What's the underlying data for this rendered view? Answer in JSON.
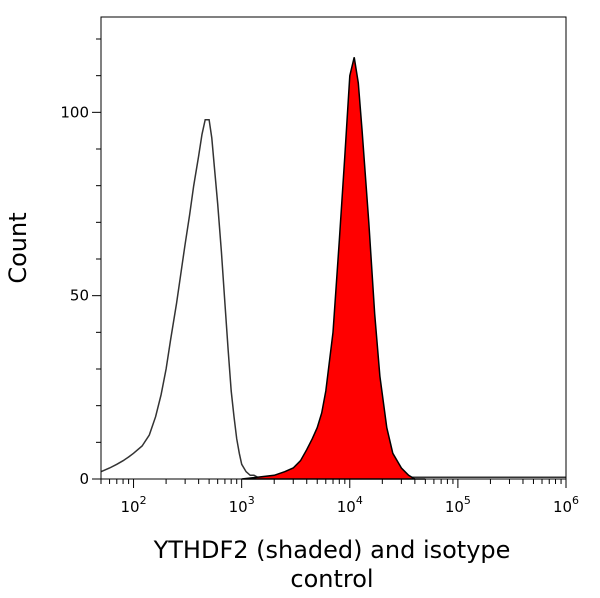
{
  "chart_data": {
    "type": "area",
    "xlabel": "YTHDF2 (shaded) and isotype control",
    "ylabel": "Count",
    "x_scale": "log",
    "xlim": [
      50,
      1000000
    ],
    "ylim": [
      0,
      126
    ],
    "x_ticks": [
      {
        "value": 100,
        "base": "10",
        "exp": "2"
      },
      {
        "value": 1000,
        "base": "10",
        "exp": "3"
      },
      {
        "value": 10000,
        "base": "10",
        "exp": "4"
      },
      {
        "value": 100000,
        "base": "10",
        "exp": "5"
      },
      {
        "value": 1000000,
        "base": "10",
        "exp": "6"
      }
    ],
    "y_ticks": [
      {
        "value": 0,
        "label": "0"
      },
      {
        "value": 50,
        "label": "50"
      },
      {
        "value": 100,
        "label": "100"
      }
    ],
    "series": [
      {
        "role": "isotype-control",
        "style": "outline",
        "color": "#333333",
        "x": [
          50,
          60,
          70,
          80,
          90,
          100,
          120,
          140,
          160,
          180,
          200,
          220,
          250,
          280,
          300,
          330,
          360,
          400,
          430,
          460,
          500,
          530,
          560,
          600,
          650,
          700,
          750,
          800,
          850,
          900,
          950,
          1000,
          1100,
          1200,
          1300,
          1400,
          1600,
          2000,
          3000,
          5000,
          10000,
          30000,
          100000,
          1000000
        ],
        "y": [
          2,
          3,
          4,
          5,
          6,
          7,
          9,
          12,
          17,
          23,
          30,
          38,
          48,
          58,
          64,
          72,
          80,
          88,
          94,
          98,
          98,
          93,
          85,
          75,
          62,
          48,
          35,
          24,
          17,
          11,
          7,
          4,
          2,
          1,
          1,
          0.5,
          0.5,
          0.5,
          0.5,
          0.5,
          0.5,
          0.5,
          0.5,
          0.5
        ]
      },
      {
        "role": "YTHDF2",
        "style": "filled",
        "color": "#ff0000",
        "x": [
          1000,
          2000,
          2500,
          3000,
          3500,
          4000,
          4500,
          5000,
          5500,
          6000,
          7000,
          8000,
          9000,
          10000,
          11000,
          12000,
          13000,
          15000,
          17000,
          19000,
          22000,
          25000,
          30000,
          35000,
          40000,
          50000
        ],
        "y": [
          0,
          1,
          2,
          3,
          5,
          8,
          11,
          14,
          18,
          24,
          40,
          65,
          88,
          110,
          115,
          108,
          95,
          70,
          45,
          28,
          14,
          7,
          3,
          1,
          0,
          0
        ]
      }
    ]
  }
}
